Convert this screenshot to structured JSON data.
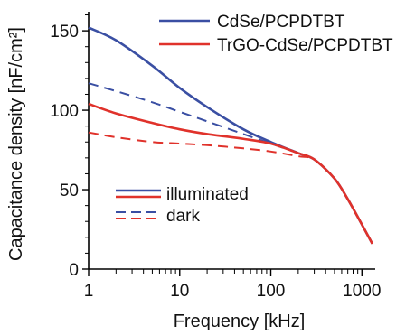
{
  "chart_data": {
    "type": "line",
    "xlabel": "Frequency [kHz]",
    "ylabel": "Capacitance density [nF/cm²]",
    "x_scale": "log",
    "xlim": [
      1,
      1400
    ],
    "ylim": [
      0,
      162
    ],
    "x_ticks": [
      1,
      10,
      100,
      1000
    ],
    "x_tick_labels": [
      "1",
      "10",
      "100",
      "1000"
    ],
    "y_ticks": [
      0,
      50,
      100,
      150
    ],
    "y_tick_labels": [
      "0",
      "50",
      "100",
      "150"
    ],
    "grid": false,
    "colors": {
      "blue": "#3a4fa3",
      "red": "#e0322b"
    },
    "series": [
      {
        "name": "CdSe/PCPDTBT",
        "condition": "illuminated",
        "color": "#3a4fa3",
        "dash": false,
        "x": [
          1,
          2,
          5,
          10,
          20,
          50,
          100,
          200,
          300,
          500,
          700,
          1000,
          1300
        ],
        "y": [
          152,
          144,
          128,
          114,
          102,
          88,
          80,
          73,
          69,
          57,
          44,
          28,
          16
        ]
      },
      {
        "name": "CdSe/PCPDTBT",
        "condition": "dark",
        "color": "#3a4fa3",
        "dash": true,
        "x": [
          1,
          2,
          5,
          10,
          20,
          50,
          100,
          200,
          300,
          500,
          700,
          1000,
          1300
        ],
        "y": [
          117,
          112,
          105,
          99,
          93,
          85,
          79,
          73,
          69,
          57,
          44,
          28,
          16
        ]
      },
      {
        "name": "TrGO-CdSe/PCPDTBT",
        "condition": "illuminated",
        "color": "#e0322b",
        "dash": false,
        "x": [
          1,
          2,
          5,
          10,
          20,
          50,
          100,
          200,
          300,
          500,
          700,
          1000,
          1300
        ],
        "y": [
          104,
          98,
          92,
          88,
          85,
          82,
          79,
          73,
          69,
          57,
          44,
          28,
          16
        ]
      },
      {
        "name": "TrGO-CdSe/PCPDTBT",
        "condition": "dark",
        "color": "#e0322b",
        "dash": true,
        "x": [
          1,
          2,
          5,
          10,
          20,
          50,
          100,
          200,
          300,
          500,
          700,
          1000,
          1300
        ],
        "y": [
          86,
          83,
          80,
          79,
          78,
          76,
          74,
          71,
          69,
          57,
          44,
          28,
          16
        ]
      }
    ],
    "legend": {
      "series": [
        {
          "label": "CdSe/PCPDTBT",
          "color": "#3a4fa3"
        },
        {
          "label": "TrGO-CdSe/PCPDTBT",
          "color": "#e0322b"
        }
      ],
      "style": [
        {
          "label": "illuminated",
          "dash": false
        },
        {
          "label": "dark",
          "dash": true
        }
      ]
    }
  }
}
